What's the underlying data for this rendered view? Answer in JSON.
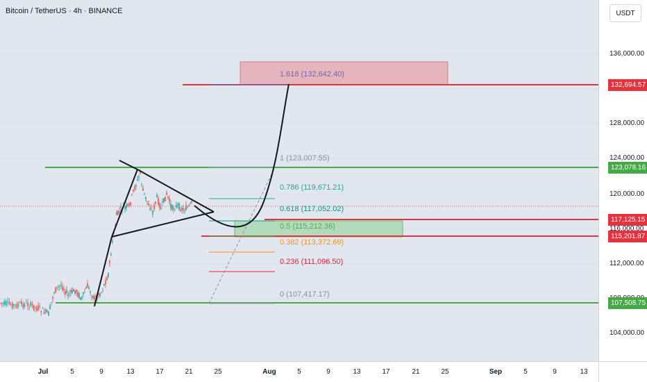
{
  "legend": {
    "symbol": "Bitcoin / TetherUS · 4h · BINANCE"
  },
  "currency": "USDT",
  "price_axis": {
    "ticks": [
      "136,000.00",
      "132,000.00",
      "128,000.00",
      "124,000.00",
      "120,000.00",
      "116,000.00",
      "112,000.00",
      "108,000.00",
      "104,000.00"
    ],
    "labels": [
      {
        "value": "132,694.57",
        "color": "#e5323e"
      },
      {
        "value": "123,078.16",
        "color": "#45a948"
      },
      {
        "value": "117,125.15",
        "color": "#e5323e"
      },
      {
        "value": "115,201.87",
        "color": "#e5323e"
      },
      {
        "value": "107,508.75",
        "color": "#45a948"
      }
    ]
  },
  "time_axis": {
    "ticks": [
      {
        "label": "Jul",
        "major": true
      },
      {
        "label": "5"
      },
      {
        "label": "9"
      },
      {
        "label": "13"
      },
      {
        "label": "17"
      },
      {
        "label": "21"
      },
      {
        "label": "25"
      },
      {
        "label": "Aug",
        "major": true
      },
      {
        "label": "5"
      },
      {
        "label": "9"
      },
      {
        "label": "13"
      },
      {
        "label": "17"
      },
      {
        "label": "21"
      },
      {
        "label": "25"
      },
      {
        "label": "Sep",
        "major": true
      },
      {
        "label": "5"
      },
      {
        "label": "9"
      },
      {
        "label": "13"
      }
    ]
  },
  "fib_levels": [
    {
      "text": "1.618 (132,642.40)",
      "color": "#7b61a8"
    },
    {
      "text": "1 (123,007.55)",
      "color": "#8a8f99"
    },
    {
      "text": "0.786 (119,671.21)",
      "color": "#26a69a"
    },
    {
      "text": "0.618 (117,052.02)",
      "color": "#089981"
    },
    {
      "text": "0.5 (115,212.36)",
      "color": "#4caf50"
    },
    {
      "text": "0.382 (113,372.69)",
      "color": "#f7931a"
    },
    {
      "text": "0.236 (111,096.50)",
      "color": "#e91e3c"
    },
    {
      "text": "0 (107,417.17)",
      "color": "#8a8f99"
    }
  ],
  "colors": {
    "green": "#45a948",
    "red": "#e5323e",
    "candle_up": "#26a69a",
    "candle_down": "#ef5350"
  }
}
